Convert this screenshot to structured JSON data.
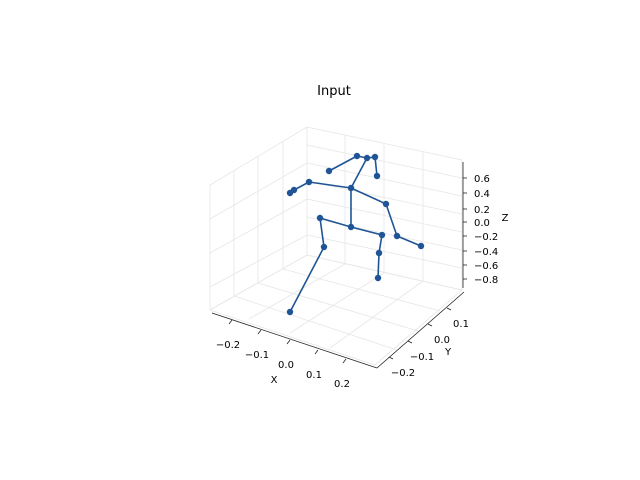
{
  "chart_data": {
    "type": "scatter",
    "title": "Input",
    "xlabel": "X",
    "ylabel": "Y",
    "zlabel": "Z",
    "x_ticks": [
      "−0.2",
      "−0.1",
      "0.0",
      "0.1",
      "0.2"
    ],
    "y_ticks": [
      "−0.2",
      "−0.1",
      "0.0",
      "0.1"
    ],
    "z_ticks": [
      "0.6",
      "0.4",
      "0.2",
      "0.0",
      "−0.2",
      "−0.4",
      "−0.6",
      "−0.8"
    ],
    "series_color": "#1f5596",
    "grid": true
  }
}
